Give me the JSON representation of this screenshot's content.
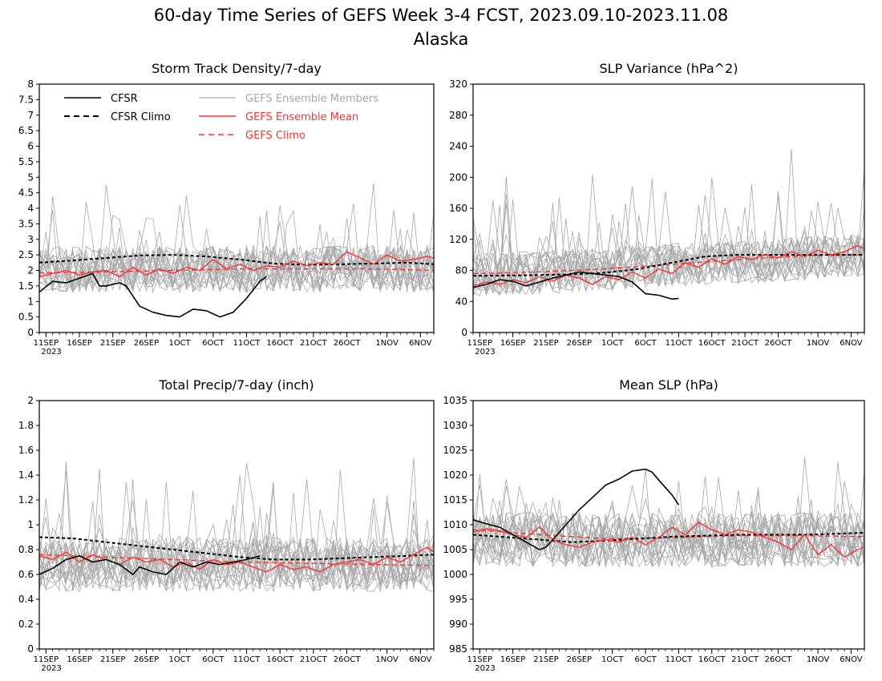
{
  "title": {
    "line1": "60-day Time Series of GEFS Week 3-4 FCST, 2023.09.10-2023.11.08",
    "line2": "Alaska"
  },
  "legend": {
    "cfsr": "CFSR",
    "cfsr_climo": "CFSR Climo",
    "members": "GEFS Ensemble Members",
    "ens_mean": "GEFS Ensemble Mean",
    "gefs_climo": "GEFS Climo"
  },
  "colors": {
    "cfsr": "#000000",
    "members": "#a8a8a8",
    "gefs": "#ff3030",
    "frame": "#000000"
  },
  "x_axis": {
    "ticks": [
      {
        "day": 1,
        "label": "11SEP"
      },
      {
        "day": 6,
        "label": "16SEP"
      },
      {
        "day": 11,
        "label": "21SEP"
      },
      {
        "day": 16,
        "label": "26SEP"
      },
      {
        "day": 21,
        "label": "1OCT"
      },
      {
        "day": 26,
        "label": "6OCT"
      },
      {
        "day": 31,
        "label": "11OCT"
      },
      {
        "day": 36,
        "label": "16OCT"
      },
      {
        "day": 41,
        "label": "21OCT"
      },
      {
        "day": 46,
        "label": "26OCT"
      },
      {
        "day": 52,
        "label": "1NOV"
      },
      {
        "day": 57,
        "label": "6NOV"
      }
    ],
    "year": "2023",
    "xlim": [
      0,
      59
    ]
  },
  "chart_data": [
    {
      "type": "line",
      "title": "Storm Track Density/7-day",
      "xlim": [
        0,
        59
      ],
      "ylim": [
        0,
        8
      ],
      "yticks": [
        0,
        0.5,
        1,
        1.5,
        2,
        2.5,
        3,
        3.5,
        4,
        4.5,
        5,
        5.5,
        6,
        6.5,
        7,
        7.5,
        8
      ],
      "ytick_labels": [
        "0",
        "0.5",
        "1",
        "1.5",
        "2",
        "2.5",
        "3",
        "3.5",
        "4",
        "4.5",
        "5",
        "5.5",
        "6",
        "6.5",
        "7",
        "7.5",
        "8"
      ],
      "legend": true,
      "member_center": 2.05,
      "member_amp": 0.75,
      "member_spike": 2.2,
      "member_floor": 0.05,
      "series": [
        {
          "name": "CFSR",
          "style": "solid-black",
          "x": [
            0,
            2,
            4,
            6,
            8,
            9,
            10,
            12,
            13,
            15,
            17,
            19,
            21,
            23,
            25,
            27,
            29,
            31,
            33,
            34
          ],
          "y": [
            1.3,
            1.65,
            1.6,
            1.75,
            1.9,
            1.5,
            1.5,
            1.6,
            1.5,
            0.85,
            0.65,
            0.55,
            0.5,
            0.75,
            0.7,
            0.5,
            0.65,
            1.1,
            1.65,
            1.8
          ]
        },
        {
          "name": "CFSR Climo",
          "style": "dashed-black",
          "x": [
            0,
            5,
            10,
            15,
            20,
            25,
            30,
            35,
            40,
            45,
            50,
            55,
            59
          ],
          "y": [
            2.25,
            2.32,
            2.4,
            2.48,
            2.5,
            2.45,
            2.35,
            2.22,
            2.18,
            2.2,
            2.22,
            2.25,
            2.2
          ]
        },
        {
          "name": "GEFS Ensemble Mean",
          "style": "solid-red",
          "x": [
            0,
            2,
            4,
            6,
            8,
            10,
            12,
            14,
            16,
            18,
            20,
            22,
            24,
            26,
            28,
            30,
            32,
            34,
            36,
            38,
            40,
            42,
            44,
            46,
            48,
            50,
            52,
            54,
            56,
            58,
            59
          ],
          "y": [
            1.8,
            1.9,
            2.0,
            1.85,
            1.95,
            2.0,
            1.8,
            2.1,
            1.85,
            2.05,
            1.9,
            2.1,
            2.0,
            2.35,
            2.05,
            2.2,
            2.0,
            2.15,
            2.1,
            2.3,
            2.15,
            2.25,
            2.2,
            2.6,
            2.4,
            2.2,
            2.5,
            2.3,
            2.35,
            2.45,
            2.4
          ]
        },
        {
          "name": "GEFS Climo",
          "style": "dashed-red",
          "x": [
            0,
            10,
            20,
            30,
            40,
            50,
            59
          ],
          "y": [
            1.92,
            1.95,
            2.0,
            2.05,
            2.05,
            2.05,
            2.0
          ]
        }
      ]
    },
    {
      "type": "line",
      "title": "SLP Variance (hPa^2)",
      "xlim": [
        0,
        59
      ],
      "ylim": [
        0,
        320
      ],
      "yticks": [
        0,
        40,
        80,
        120,
        160,
        200,
        240,
        280,
        320
      ],
      "ytick_labels": [
        "0",
        "40",
        "80",
        "120",
        "160",
        "200",
        "240",
        "280",
        "320"
      ],
      "legend": false,
      "member_center": 82,
      "member_amp": 28,
      "member_spike": 120,
      "member_floor": 20,
      "member_trend": 0.45,
      "series": [
        {
          "name": "CFSR",
          "style": "solid-black",
          "x": [
            0,
            2,
            4,
            6,
            8,
            10,
            12,
            14,
            16,
            18,
            20,
            22,
            24,
            26,
            28,
            30,
            31
          ],
          "y": [
            58,
            62,
            68,
            66,
            60,
            65,
            70,
            74,
            78,
            76,
            74,
            72,
            65,
            50,
            48,
            43,
            44
          ]
        },
        {
          "name": "CFSR Climo",
          "style": "dashed-black",
          "x": [
            0,
            10,
            15,
            20,
            25,
            30,
            35,
            40,
            45,
            50,
            55,
            59
          ],
          "y": [
            73,
            74,
            75,
            77,
            82,
            90,
            98,
            100,
            100,
            100,
            100,
            100
          ]
        },
        {
          "name": "GEFS Ensemble Mean",
          "style": "solid-red",
          "x": [
            0,
            2,
            4,
            6,
            8,
            10,
            12,
            14,
            16,
            18,
            20,
            22,
            24,
            26,
            28,
            30,
            32,
            34,
            36,
            38,
            40,
            42,
            44,
            46,
            48,
            50,
            52,
            54,
            56,
            58,
            59
          ],
          "y": [
            60,
            65,
            62,
            68,
            64,
            72,
            66,
            74,
            70,
            62,
            72,
            68,
            78,
            70,
            82,
            76,
            90,
            84,
            95,
            88,
            98,
            94,
            100,
            96,
            104,
            98,
            106,
            100,
            104,
            112,
            108
          ]
        },
        {
          "name": "GEFS Climo",
          "style": "dashed-red",
          "x": [
            0,
            10,
            20,
            30,
            40,
            50,
            59
          ],
          "y": [
            76,
            78,
            82,
            88,
            94,
            99,
            100
          ]
        }
      ]
    },
    {
      "type": "line",
      "title": "Total Precip/7-day (inch)",
      "xlim": [
        0,
        59
      ],
      "ylim": [
        0,
        2
      ],
      "yticks": [
        0,
        0.2,
        0.4,
        0.6,
        0.8,
        1,
        1.2,
        1.4,
        1.6,
        1.8,
        2
      ],
      "ytick_labels": [
        "0",
        "0.2",
        "0.4",
        "0.6",
        "0.8",
        "1",
        "1.2",
        "1.4",
        "1.6",
        "1.8",
        "2"
      ],
      "legend": false,
      "member_center": 0.68,
      "member_amp": 0.22,
      "member_spike": 0.7,
      "member_floor": 0.08,
      "series": [
        {
          "name": "CFSR",
          "style": "solid-black",
          "x": [
            0,
            2,
            4,
            6,
            8,
            10,
            12,
            14,
            15,
            17,
            19,
            21,
            23,
            25,
            27,
            29,
            31,
            33
          ],
          "y": [
            0.6,
            0.65,
            0.72,
            0.75,
            0.7,
            0.72,
            0.68,
            0.6,
            0.66,
            0.62,
            0.6,
            0.7,
            0.66,
            0.7,
            0.68,
            0.7,
            0.72,
            0.75
          ]
        },
        {
          "name": "CFSR Climo",
          "style": "dashed-black",
          "x": [
            0,
            5,
            10,
            15,
            20,
            25,
            30,
            35,
            40,
            45,
            50,
            55,
            59
          ],
          "y": [
            0.9,
            0.89,
            0.86,
            0.83,
            0.8,
            0.77,
            0.74,
            0.72,
            0.72,
            0.73,
            0.74,
            0.75,
            0.76
          ]
        },
        {
          "name": "GEFS Ensemble Mean",
          "style": "solid-red",
          "x": [
            0,
            2,
            4,
            6,
            8,
            10,
            12,
            14,
            16,
            18,
            20,
            22,
            24,
            26,
            28,
            30,
            32,
            34,
            36,
            38,
            40,
            42,
            44,
            46,
            48,
            50,
            52,
            54,
            56,
            58,
            59
          ],
          "y": [
            0.75,
            0.72,
            0.78,
            0.7,
            0.76,
            0.72,
            0.68,
            0.74,
            0.7,
            0.72,
            0.66,
            0.7,
            0.64,
            0.72,
            0.68,
            0.7,
            0.66,
            0.62,
            0.68,
            0.64,
            0.66,
            0.62,
            0.68,
            0.7,
            0.72,
            0.68,
            0.74,
            0.7,
            0.76,
            0.82,
            0.78
          ]
        },
        {
          "name": "GEFS Climo",
          "style": "dashed-red",
          "x": [
            0,
            10,
            20,
            30,
            40,
            50,
            59
          ],
          "y": [
            0.76,
            0.74,
            0.72,
            0.7,
            0.69,
            0.68,
            0.67
          ]
        }
      ]
    },
    {
      "type": "line",
      "title": "Mean SLP (hPa)",
      "xlim": [
        0,
        59
      ],
      "ylim": [
        985,
        1035
      ],
      "yticks": [
        985,
        990,
        995,
        1000,
        1005,
        1010,
        1015,
        1020,
        1025,
        1030,
        1035
      ],
      "ytick_labels": [
        "985",
        "990",
        "995",
        "1000",
        "1005",
        "1010",
        "1015",
        "1020",
        "1025",
        "1030",
        "1035"
      ],
      "legend": false,
      "member_center": 1007,
      "member_amp": 5.5,
      "member_spike": 12,
      "member_floor": 985,
      "series": [
        {
          "name": "CFSR",
          "style": "solid-black",
          "x": [
            0,
            2,
            4,
            6,
            8,
            10,
            11,
            12,
            14,
            16,
            18,
            20,
            22,
            24,
            26,
            27,
            28,
            30,
            31
          ],
          "y": [
            1011,
            1010.2,
            1009.5,
            1008,
            1006.5,
            1005,
            1005.5,
            1007,
            1010,
            1013,
            1015.5,
            1018,
            1019.2,
            1020.8,
            1021.2,
            1020.6,
            1019,
            1016,
            1014
          ]
        },
        {
          "name": "CFSR Climo",
          "style": "dashed-black",
          "x": [
            0,
            5,
            10,
            15,
            20,
            25,
            30,
            35,
            40,
            45,
            50,
            55,
            59
          ],
          "y": [
            1008,
            1007.5,
            1007,
            1006.5,
            1006.8,
            1007.2,
            1007.6,
            1007.8,
            1008,
            1008,
            1008,
            1008.2,
            1008.4
          ]
        },
        {
          "name": "GEFS Ensemble Mean",
          "style": "solid-red",
          "x": [
            0,
            2,
            4,
            6,
            8,
            10,
            12,
            14,
            16,
            18,
            20,
            22,
            24,
            26,
            28,
            30,
            32,
            34,
            36,
            38,
            40,
            42,
            44,
            46,
            48,
            50,
            52,
            54,
            56,
            58,
            59
          ],
          "y": [
            1008.5,
            1009.2,
            1008.8,
            1008,
            1007.5,
            1009.5,
            1007,
            1006,
            1005.5,
            1006.5,
            1007,
            1006.5,
            1007.5,
            1006,
            1007.5,
            1009.5,
            1008,
            1010.5,
            1009,
            1008,
            1009,
            1008.5,
            1007.5,
            1006.5,
            1005,
            1008,
            1004,
            1006,
            1003.5,
            1005,
            1005.5
          ]
        },
        {
          "name": "GEFS Climo",
          "style": "dashed-red",
          "x": [
            0,
            10,
            20,
            30,
            40,
            50,
            59
          ],
          "y": [
            1009,
            1008,
            1007.2,
            1007.4,
            1007.8,
            1007.8,
            1007.6
          ]
        }
      ]
    }
  ]
}
